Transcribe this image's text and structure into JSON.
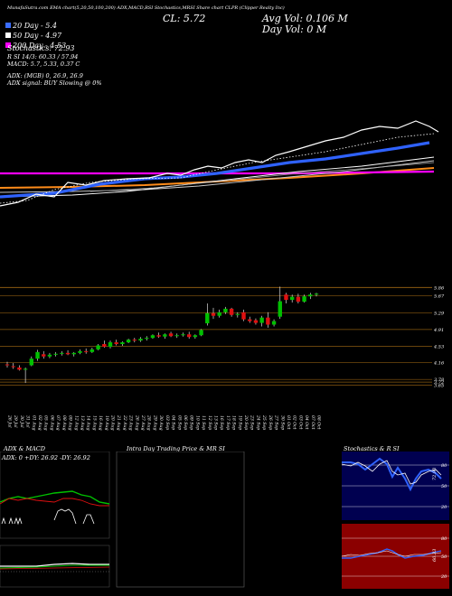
{
  "header": {
    "line": "MunafaSutra.com  EMA chart(5,20,50,100,200)  ADX,MACD,RSI  Stochastics,MRSI  Share chart CLPR  (Clipper Realty Inc)",
    "close_label": "CL: 5.72",
    "avg_vol_label": "Avg Vol: 0.106  M",
    "day_vol_label": "Day Vol: 0   M"
  },
  "indicators": {
    "ema20": "20  Day - 5.4",
    "ema50": "50  Day - 4.97",
    "ema200": "200  Day - 4.53",
    "stochastics": "Stochastics: 72.93",
    "rsi": "R          SI 14/3: 60.33 / 57.94",
    "macd": "MACD: 5.7,  5.33,  0.37 C",
    "adx": "ADX:                               (MGB) 0,  26.9,  26.9",
    "adx_signal": "ADX  signal:                                     BUY Slowing @ 0%"
  },
  "colors": {
    "ema20_box": "#3b6dff",
    "ema50_box": "#ffffff",
    "ema200_box": "#ff00ff",
    "up": "#00c000",
    "down": "#e01010",
    "grid": "#8a5a10"
  },
  "chart_data": [
    {
      "type": "candlestick",
      "price_levels": [
        "5.86",
        "5.67",
        "5.29",
        "4.91",
        "4.53",
        "4.16",
        "3.78",
        "3.72",
        "3.65"
      ],
      "x_dates": [
        "26 Jul",
        "29 Jul",
        "30 Jul",
        "31 Jul",
        "01 Aug",
        "02 Aug",
        "05 Aug",
        "06 Aug",
        "07 Aug",
        "08 Aug",
        "09 Aug",
        "12 Aug",
        "13 Aug",
        "14 Aug",
        "15 Aug",
        "16 Aug",
        "19 Aug",
        "20 Aug",
        "21 Aug",
        "22 Aug",
        "23 Aug",
        "26 Aug",
        "27 Aug",
        "28 Aug",
        "29 Aug",
        "30 Aug",
        "03 Sep",
        "04 Sep",
        "05 Sep",
        "06 Sep",
        "09 Sep",
        "10 Sep",
        "11 Sep",
        "12 Sep",
        "13 Sep",
        "16 Sep",
        "17 Sep",
        "18 Sep",
        "19 Sep",
        "20 Sep",
        "23 Sep",
        "24 Sep",
        "25 Sep",
        "26 Sep",
        "27 Sep",
        "30 Sep",
        "01 Oct",
        "02 Oct",
        "03 Oct",
        "04 Oct",
        "07 Oct",
        "08 Oct"
      ],
      "candles": [
        {
          "o": 4.12,
          "h": 4.18,
          "l": 4.05,
          "c": 4.1
        },
        {
          "o": 4.08,
          "h": 4.15,
          "l": 4.02,
          "c": 4.06
        },
        {
          "o": 4.05,
          "h": 4.1,
          "l": 3.98,
          "c": 4.0
        },
        {
          "o": 4.0,
          "h": 4.05,
          "l": 3.7,
          "c": 4.02
        },
        {
          "o": 4.1,
          "h": 4.3,
          "l": 4.08,
          "c": 4.25
        },
        {
          "o": 4.25,
          "h": 4.45,
          "l": 4.2,
          "c": 4.4
        },
        {
          "o": 4.35,
          "h": 4.42,
          "l": 4.25,
          "c": 4.3
        },
        {
          "o": 4.3,
          "h": 4.38,
          "l": 4.26,
          "c": 4.34
        },
        {
          "o": 4.34,
          "h": 4.4,
          "l": 4.3,
          "c": 4.36
        },
        {
          "o": 4.36,
          "h": 4.42,
          "l": 4.32,
          "c": 4.38
        },
        {
          "o": 4.38,
          "h": 4.44,
          "l": 4.33,
          "c": 4.35
        },
        {
          "o": 4.35,
          "h": 4.4,
          "l": 4.3,
          "c": 4.38
        },
        {
          "o": 4.38,
          "h": 4.46,
          "l": 4.35,
          "c": 4.42
        },
        {
          "o": 4.42,
          "h": 4.48,
          "l": 4.36,
          "c": 4.4
        },
        {
          "o": 4.4,
          "h": 4.5,
          "l": 4.38,
          "c": 4.46
        },
        {
          "o": 4.46,
          "h": 4.58,
          "l": 4.44,
          "c": 4.55
        },
        {
          "o": 4.58,
          "h": 4.66,
          "l": 4.5,
          "c": 4.52
        },
        {
          "o": 4.52,
          "h": 4.66,
          "l": 4.48,
          "c": 4.62
        },
        {
          "o": 4.62,
          "h": 4.68,
          "l": 4.55,
          "c": 4.58
        },
        {
          "o": 4.58,
          "h": 4.64,
          "l": 4.54,
          "c": 4.62
        },
        {
          "o": 4.62,
          "h": 4.7,
          "l": 4.6,
          "c": 4.68
        },
        {
          "o": 4.68,
          "h": 4.72,
          "l": 4.62,
          "c": 4.66
        },
        {
          "o": 4.66,
          "h": 4.74,
          "l": 4.63,
          "c": 4.7
        },
        {
          "o": 4.7,
          "h": 4.76,
          "l": 4.66,
          "c": 4.72
        },
        {
          "o": 4.72,
          "h": 4.8,
          "l": 4.7,
          "c": 4.78
        },
        {
          "o": 4.78,
          "h": 4.84,
          "l": 4.72,
          "c": 4.75
        },
        {
          "o": 4.75,
          "h": 4.82,
          "l": 4.7,
          "c": 4.8
        },
        {
          "o": 4.82,
          "h": 4.86,
          "l": 4.74,
          "c": 4.76
        },
        {
          "o": 4.76,
          "h": 4.82,
          "l": 4.72,
          "c": 4.78
        },
        {
          "o": 4.78,
          "h": 4.84,
          "l": 4.75,
          "c": 4.8
        },
        {
          "o": 4.8,
          "h": 4.86,
          "l": 4.7,
          "c": 4.74
        },
        {
          "o": 4.74,
          "h": 4.8,
          "l": 4.7,
          "c": 4.78
        },
        {
          "o": 4.78,
          "h": 4.92,
          "l": 4.76,
          "c": 4.9
        },
        {
          "o": 5.05,
          "h": 5.5,
          "l": 5.0,
          "c": 5.28
        },
        {
          "o": 5.28,
          "h": 5.4,
          "l": 5.15,
          "c": 5.22
        },
        {
          "o": 5.22,
          "h": 5.36,
          "l": 5.18,
          "c": 5.3
        },
        {
          "o": 5.3,
          "h": 5.42,
          "l": 5.26,
          "c": 5.38
        },
        {
          "o": 5.38,
          "h": 5.4,
          "l": 5.2,
          "c": 5.24
        },
        {
          "o": 5.24,
          "h": 5.3,
          "l": 5.18,
          "c": 5.26
        },
        {
          "o": 5.3,
          "h": 5.36,
          "l": 5.1,
          "c": 5.14
        },
        {
          "o": 5.14,
          "h": 5.2,
          "l": 5.06,
          "c": 5.1
        },
        {
          "o": 5.12,
          "h": 5.16,
          "l": 5.02,
          "c": 5.06
        },
        {
          "o": 5.06,
          "h": 5.22,
          "l": 4.98,
          "c": 5.18
        },
        {
          "o": 5.18,
          "h": 5.3,
          "l": 4.95,
          "c": 5.02
        },
        {
          "o": 5.02,
          "h": 5.14,
          "l": 4.98,
          "c": 5.1
        },
        {
          "o": 5.2,
          "h": 5.88,
          "l": 5.15,
          "c": 5.55
        },
        {
          "o": 5.7,
          "h": 5.74,
          "l": 5.5,
          "c": 5.58
        },
        {
          "o": 5.58,
          "h": 5.7,
          "l": 5.52,
          "c": 5.65
        },
        {
          "o": 5.65,
          "h": 5.72,
          "l": 5.5,
          "c": 5.54
        },
        {
          "o": 5.54,
          "h": 5.7,
          "l": 5.52,
          "c": 5.66
        },
        {
          "o": 5.66,
          "h": 5.74,
          "l": 5.6,
          "c": 5.7
        },
        {
          "o": 5.7,
          "h": 5.74,
          "l": 5.66,
          "c": 5.72
        }
      ]
    },
    {
      "type": "line",
      "panel": "ADX & MACD",
      "label": "ADX: 0  +DY: 26.92  -DY: 26.92"
    },
    {
      "type": "line",
      "panel": "Intra Day Trading Price & MRSI"
    },
    {
      "type": "line",
      "panel": "Stochastics & RSI",
      "ticks": [
        "80",
        "50",
        "20"
      ]
    }
  ],
  "panels": {
    "adx_title": "ADX  & MACD",
    "intraday_title": "Intra  Day Trading Price  & MR                 SI",
    "stoch_title": "Stochastics & R                SI",
    "adx_label": "ADX: 0   +DY: 26.92   -DY: 26.92",
    "stoch_ticks": [
      "80",
      "50",
      "20"
    ],
    "rsi_ticks": [
      "80",
      "50",
      "20"
    ],
    "stoch_value": "72.93",
    "rsi_value": "60.33"
  }
}
